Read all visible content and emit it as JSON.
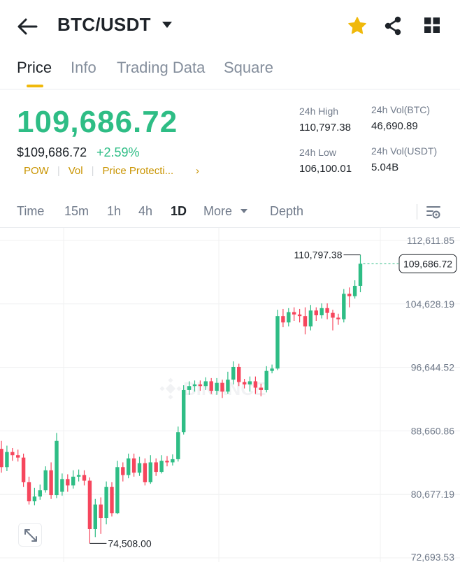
{
  "header": {
    "pair": "BTC/USDT",
    "icons": [
      "back-arrow-icon",
      "caret-down-icon",
      "star-icon",
      "share-icon",
      "grid-icon"
    ],
    "star_color": "#f0b90b"
  },
  "tabs": [
    "Price",
    "Info",
    "Trading Data",
    "Square"
  ],
  "active_tab": "Price",
  "ticker": {
    "last_price": "109,686.72",
    "usd_price": "$109,686.72",
    "change": "+2.59%",
    "tags": [
      "POW",
      "Vol",
      "Price Protecti..."
    ],
    "more": "›"
  },
  "stats": {
    "high_label": "24h High",
    "high_value": "110,797.38",
    "low_label": "24h Low",
    "low_value": "106,100.01",
    "vol_btc_label": "24h Vol(BTC)",
    "vol_btc_value": "46,690.89",
    "vol_usdt_label": "24h Vol(USDT)",
    "vol_usdt_value": "5.04B"
  },
  "intervals": [
    "Time",
    "15m",
    "1h",
    "4h",
    "1D",
    "More",
    "Depth"
  ],
  "active_interval": "1D",
  "colors": {
    "up": "#2ebd85",
    "down": "#f6465d",
    "accent": "#f0b90b"
  },
  "chart_data": {
    "type": "candlestick",
    "y_ticks": [
      "112,611.85",
      "104,628.19",
      "96,644.52",
      "88,660.86",
      "80,677.19",
      "72,693.53"
    ],
    "ylim": [
      72693.53,
      112611.85
    ],
    "high_label": "110,797.38",
    "low_label": "74,508.00",
    "last_price_label": "109,686.72",
    "watermark": "BINANCE",
    "candles": [
      {
        "o": 86400,
        "c": 84100,
        "h": 87400,
        "l": 83400
      },
      {
        "o": 84100,
        "c": 86000,
        "h": 86800,
        "l": 83600
      },
      {
        "o": 86000,
        "c": 85600,
        "h": 86500,
        "l": 84900
      },
      {
        "o": 85600,
        "c": 85300,
        "h": 86300,
        "l": 84800
      },
      {
        "o": 85300,
        "c": 82200,
        "h": 85800,
        "l": 81600
      },
      {
        "o": 82200,
        "c": 79800,
        "h": 82900,
        "l": 79400
      },
      {
        "o": 79800,
        "c": 80400,
        "h": 81500,
        "l": 79300
      },
      {
        "o": 80400,
        "c": 81200,
        "h": 81900,
        "l": 80000
      },
      {
        "o": 81200,
        "c": 83700,
        "h": 84200,
        "l": 80900
      },
      {
        "o": 83700,
        "c": 80600,
        "h": 84700,
        "l": 80100
      },
      {
        "o": 80600,
        "c": 87400,
        "h": 88400,
        "l": 80200
      },
      {
        "o": 81000,
        "c": 82600,
        "h": 83300,
        "l": 80500
      },
      {
        "o": 82600,
        "c": 81800,
        "h": 83200,
        "l": 81000
      },
      {
        "o": 81800,
        "c": 82900,
        "h": 83700,
        "l": 81400
      },
      {
        "o": 82900,
        "c": 83100,
        "h": 83800,
        "l": 82300
      },
      {
        "o": 83100,
        "c": 82400,
        "h": 83700,
        "l": 81800
      },
      {
        "o": 82400,
        "c": 76300,
        "h": 82800,
        "l": 74508
      },
      {
        "o": 76300,
        "c": 79400,
        "h": 80100,
        "l": 75300
      },
      {
        "o": 79400,
        "c": 77700,
        "h": 80300,
        "l": 75700
      },
      {
        "o": 77700,
        "c": 81600,
        "h": 82300,
        "l": 76900
      },
      {
        "o": 81600,
        "c": 78300,
        "h": 82200,
        "l": 77900
      },
      {
        "o": 78300,
        "c": 84100,
        "h": 84900,
        "l": 78200
      },
      {
        "o": 84100,
        "c": 83100,
        "h": 84700,
        "l": 82300
      },
      {
        "o": 83100,
        "c": 85200,
        "h": 85800,
        "l": 82700
      },
      {
        "o": 85200,
        "c": 83400,
        "h": 85800,
        "l": 82900
      },
      {
        "o": 83400,
        "c": 84600,
        "h": 85400,
        "l": 83000
      },
      {
        "o": 84600,
        "c": 82200,
        "h": 85200,
        "l": 81800
      },
      {
        "o": 82200,
        "c": 84700,
        "h": 85600,
        "l": 82000
      },
      {
        "o": 84700,
        "c": 83500,
        "h": 85200,
        "l": 83000
      },
      {
        "o": 83500,
        "c": 84900,
        "h": 85600,
        "l": 83300
      },
      {
        "o": 84900,
        "c": 84700,
        "h": 85500,
        "l": 84200
      },
      {
        "o": 84700,
        "c": 85100,
        "h": 85700,
        "l": 84300
      },
      {
        "o": 85100,
        "c": 88500,
        "h": 89200,
        "l": 84800
      },
      {
        "o": 88500,
        "c": 93800,
        "h": 94400,
        "l": 88200
      },
      {
        "o": 93800,
        "c": 94300,
        "h": 94900,
        "l": 93200
      },
      {
        "o": 94300,
        "c": 94500,
        "h": 95000,
        "l": 93600
      },
      {
        "o": 94500,
        "c": 94300,
        "h": 95000,
        "l": 93700
      },
      {
        "o": 94300,
        "c": 94900,
        "h": 95400,
        "l": 93800
      },
      {
        "o": 94900,
        "c": 93700,
        "h": 95300,
        "l": 93300
      },
      {
        "o": 93700,
        "c": 94700,
        "h": 95300,
        "l": 93200
      },
      {
        "o": 94700,
        "c": 93600,
        "h": 95100,
        "l": 92800
      },
      {
        "o": 93600,
        "c": 95100,
        "h": 96100,
        "l": 93300
      },
      {
        "o": 95100,
        "c": 96700,
        "h": 97400,
        "l": 94500
      },
      {
        "o": 96700,
        "c": 94800,
        "h": 97100,
        "l": 94300
      },
      {
        "o": 94800,
        "c": 94500,
        "h": 95200,
        "l": 94000
      },
      {
        "o": 94500,
        "c": 94900,
        "h": 95500,
        "l": 93600
      },
      {
        "o": 94900,
        "c": 94100,
        "h": 95500,
        "l": 93300
      },
      {
        "o": 94100,
        "c": 93800,
        "h": 94600,
        "l": 93000
      },
      {
        "o": 93800,
        "c": 96200,
        "h": 96800,
        "l": 93500
      },
      {
        "o": 96200,
        "c": 96500,
        "h": 97000,
        "l": 95900
      },
      {
        "o": 96500,
        "c": 103100,
        "h": 103900,
        "l": 96300
      },
      {
        "o": 103100,
        "c": 102300,
        "h": 104000,
        "l": 101700
      },
      {
        "o": 102300,
        "c": 103600,
        "h": 104100,
        "l": 101800
      },
      {
        "o": 103600,
        "c": 103300,
        "h": 104200,
        "l": 102500
      },
      {
        "o": 103300,
        "c": 103100,
        "h": 104000,
        "l": 102300
      },
      {
        "o": 103100,
        "c": 101800,
        "h": 104200,
        "l": 100800
      },
      {
        "o": 101800,
        "c": 103800,
        "h": 104500,
        "l": 101300
      },
      {
        "o": 103800,
        "c": 103200,
        "h": 104200,
        "l": 102500
      },
      {
        "o": 103200,
        "c": 104100,
        "h": 104700,
        "l": 102800
      },
      {
        "o": 104100,
        "c": 103500,
        "h": 104700,
        "l": 102700
      },
      {
        "o": 103500,
        "c": 102900,
        "h": 103900,
        "l": 101300
      },
      {
        "o": 102900,
        "c": 102700,
        "h": 103400,
        "l": 102000
      },
      {
        "o": 102700,
        "c": 105900,
        "h": 106500,
        "l": 102300
      },
      {
        "o": 105900,
        "c": 105600,
        "h": 106700,
        "l": 104200
      },
      {
        "o": 105600,
        "c": 106900,
        "h": 107600,
        "l": 105300
      },
      {
        "o": 106900,
        "c": 109686,
        "h": 110797.38,
        "l": 106100
      }
    ]
  }
}
